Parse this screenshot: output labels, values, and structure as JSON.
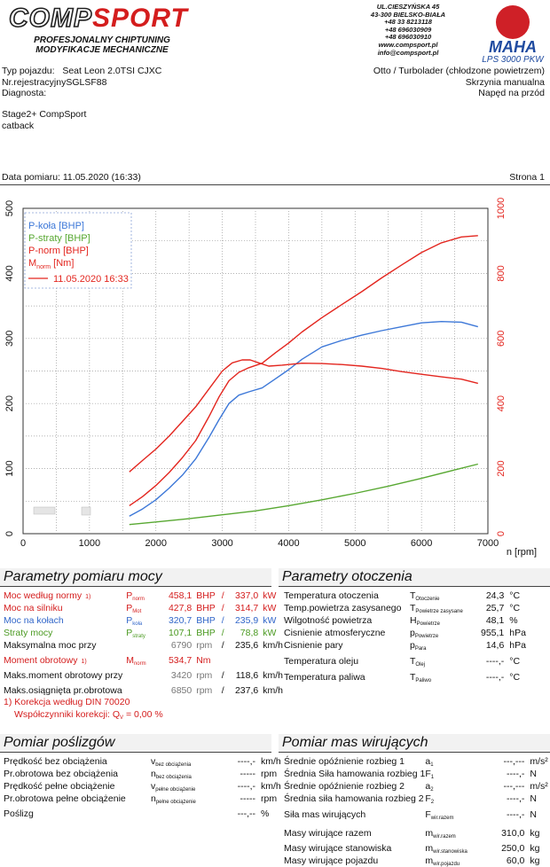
{
  "header": {
    "logo_comp": "COMP",
    "logo_sport": "SPORT",
    "logo_sub1": "PROFESJONALNY CHIPTUNING",
    "logo_sub2": "MODYFIKACJE MECHANICZNE",
    "address": [
      "UL.CIESZYŃSKA 45",
      "43-300 BIELSKO-BIAŁA",
      "+48 33 8213118",
      "+48 696030909",
      "+48 696030910",
      "www.compsport.pl",
      "info@compsport.pl"
    ],
    "brand": "MAHA",
    "model": "LPS 3000 PKW"
  },
  "vehicle": {
    "type_label": "Typ pojazdu:",
    "type_value": "Seat Leon 2.0TSI CJXC",
    "reg_label": "Nr.rejestracyjny",
    "reg_value": "SGLSF88",
    "diag_label": "Diagnosta:",
    "engine": "Otto / Turbolader (chłodzone powietrzem)",
    "gearbox": "Skrzynia manualna",
    "drive": "Napęd na przód"
  },
  "notes": [
    "Stage2+ CompSport",
    "catback"
  ],
  "measure": {
    "date_label": "Data pomiaru:",
    "date": "11.05.2020 (16:33)",
    "page": "Strona 1"
  },
  "chart_data": {
    "type": "line",
    "x_label": "n [rpm]",
    "x_range": [
      0,
      7000
    ],
    "x_ticks": [
      0,
      1000,
      2000,
      3000,
      4000,
      5000,
      6000,
      7000
    ],
    "y_left_range": [
      0,
      500
    ],
    "y_left_ticks": [
      0,
      100,
      200,
      300,
      400,
      500
    ],
    "y_right_range": [
      0,
      1000
    ],
    "y_right_ticks": [
      0,
      200,
      400,
      600,
      800,
      1000
    ],
    "grid": true,
    "legend_position": "top-left",
    "legend": [
      "P-koła [BHP]",
      "P-straty [BHP]",
      "P-norm [BHP]",
      "M",
      "norm",
      " [Nm]",
      "11.05.2020 16:33"
    ],
    "colors": {
      "p_kola": "#3d78d8",
      "p_straty": "#58a832",
      "p_norm": "#e3261f",
      "m_norm": "#e3261f",
      "grid": "#999999"
    },
    "series": [
      {
        "name": "P-koła [BHP]",
        "axis": "left",
        "x": [
          1600,
          1800,
          2000,
          2200,
          2400,
          2600,
          2800,
          2950,
          3100,
          3250,
          3400,
          3600,
          3800,
          4000,
          4200,
          4500,
          4800,
          5100,
          5400,
          5700,
          6000,
          6300,
          6600,
          6850
        ],
        "y": [
          27,
          38,
          52,
          70,
          90,
          115,
          148,
          175,
          200,
          213,
          218,
          224,
          238,
          252,
          268,
          287,
          297,
          305,
          312,
          318,
          324,
          326,
          325,
          318
        ]
      },
      {
        "name": "P-straty [BHP]",
        "axis": "left",
        "x": [
          1600,
          2000,
          2500,
          3000,
          3500,
          4000,
          4500,
          5000,
          5500,
          6000,
          6500,
          6850
        ],
        "y": [
          14,
          18,
          23,
          29,
          35,
          43,
          52,
          62,
          73,
          85,
          98,
          107
        ]
      },
      {
        "name": "P-norm [BHP]",
        "axis": "left",
        "x": [
          1600,
          1800,
          2000,
          2200,
          2400,
          2600,
          2800,
          2950,
          3100,
          3250,
          3400,
          3600,
          3800,
          4000,
          4200,
          4500,
          4800,
          5100,
          5400,
          5700,
          6000,
          6300,
          6600,
          6850
        ],
        "y": [
          43,
          57,
          74,
          94,
          117,
          143,
          180,
          210,
          235,
          248,
          255,
          262,
          278,
          293,
          310,
          332,
          352,
          372,
          393,
          413,
          432,
          447,
          456,
          458
        ]
      },
      {
        "name": "M",
        "axis": "right",
        "x": [
          1600,
          1800,
          2000,
          2200,
          2400,
          2600,
          2800,
          3000,
          3150,
          3300,
          3420,
          3550,
          3700,
          3900,
          4200,
          4500,
          4800,
          5100,
          5400,
          5700,
          6000,
          6300,
          6600,
          6850
        ],
        "y": [
          190,
          225,
          260,
          300,
          345,
          390,
          445,
          500,
          525,
          534,
          534,
          525,
          515,
          518,
          524,
          523,
          520,
          515,
          508,
          498,
          490,
          482,
          475,
          462
        ]
      }
    ]
  },
  "params": {
    "title": "Parametry pomiaru mocy",
    "rows": [
      {
        "label": "Moc według normy",
        "note": "1)",
        "sym": "P",
        "sub": "norm",
        "v1": "458,1",
        "u1": "BHP",
        "v2": "337,0",
        "u2": "kW",
        "color": "red"
      },
      {
        "label": "Moc na silniku",
        "note": "",
        "sym": "P",
        "sub": "Mot",
        "v1": "427,8",
        "u1": "BHP",
        "v2": "314,7",
        "u2": "kW",
        "color": "red"
      },
      {
        "label": "Moc na kołach",
        "note": "",
        "sym": "P",
        "sub": "koła",
        "v1": "320,7",
        "u1": "BHP",
        "v2": "235,9",
        "u2": "kW",
        "color": "blue"
      },
      {
        "label": "Straty mocy",
        "note": "",
        "sym": "P",
        "sub": "straty",
        "v1": "107,1",
        "u1": "BHP",
        "v2": "78,8",
        "u2": "kW",
        "color": "green"
      },
      {
        "label": "Maksymalna moc przy",
        "note": "",
        "sym": "",
        "sub": "",
        "v1": "6790",
        "u1": "rpm",
        "v2": "235,6",
        "u2": "km/h",
        "color": "black"
      },
      {
        "label": "Moment obrotowy",
        "note": "1)",
        "sym": "M",
        "sub": "norm",
        "v1": "534,7",
        "u1": "Nm",
        "v2": "",
        "u2": "",
        "color": "red"
      },
      {
        "label": "Maks.moment obrotowy przy",
        "note": "",
        "sym": "",
        "sub": "",
        "v1": "3420",
        "u1": "rpm",
        "v2": "118,6",
        "u2": "km/h",
        "color": "black"
      },
      {
        "label": "Maks.osiągnięta pr.obrotowa",
        "note": "",
        "sym": "",
        "sub": "",
        "v1": "6850",
        "u1": "rpm",
        "v2": "237,6",
        "u2": "km/h",
        "color": "black"
      }
    ],
    "correction1": "1) Korekcja według DIN 70020",
    "correction2": "Współczynniki korekcji: Q",
    "correction2_sub": "V",
    "correction2_val": "=   0,00 %"
  },
  "env": {
    "title": "Parametry otoczenia",
    "rows": [
      {
        "label": "Temperatura otoczenia",
        "sym": "T",
        "sub": "Otoczenie",
        "val": "24,3",
        "unit": "°C"
      },
      {
        "label": "Temp.powietrza zasysanego",
        "sym": "T",
        "sub": "Powietrze zasysane",
        "val": "25,7",
        "unit": "°C"
      },
      {
        "label": "Wilgotność powietrza",
        "sym": "H",
        "sub": "Powietrze",
        "val": "48,1",
        "unit": "%"
      },
      {
        "label": "Cisnienie atmosferyczne",
        "sym": "p",
        "sub": "Powietrze",
        "val": "955,1",
        "unit": "hPa"
      },
      {
        "label": "Cisnienie pary",
        "sym": "p",
        "sub": "Para",
        "val": "14,6",
        "unit": "hPa"
      },
      {
        "label": "Temperatura oleju",
        "sym": "T",
        "sub": "Olej",
        "val": "----,-",
        "unit": "°C"
      },
      {
        "label": "Temperatura paliwa",
        "sym": "T",
        "sub": "Paliwo",
        "val": "----,-",
        "unit": "°C"
      }
    ]
  },
  "slip": {
    "title": "Pomiar poślizgów",
    "rows": [
      {
        "label": "Prędkość bez obciążenia",
        "sym": "v",
        "sub": "bez obciążenia",
        "val": "----,-",
        "unit": "km/h"
      },
      {
        "label": "Pr.obrotowa bez obciążenia",
        "sym": "n",
        "sub": "bez obciążenia",
        "val": "-----",
        "unit": "rpm"
      },
      {
        "label": "Prędkość pełne obciążenie",
        "sym": "v",
        "sub": "pełne obciążenie",
        "val": "----,-",
        "unit": "km/h"
      },
      {
        "label": "Pr.obrotowa pełne obciążenie",
        "sym": "n",
        "sub": "pełne obciążenie",
        "val": "-----",
        "unit": "rpm"
      },
      {
        "label": "Poślizg",
        "sym": "",
        "sub": "",
        "val": "---,--",
        "unit": "%"
      }
    ]
  },
  "inertia": {
    "title": "Pomiar mas wirujących",
    "rows": [
      {
        "label": "Średnie opóźnienie rozbieg 1",
        "sym": "a",
        "sub": "1",
        "val": "---,---",
        "unit": "m/s²"
      },
      {
        "label": "Średnia Siła hamowania rozbieg 1",
        "sym": "F",
        "sub": "1",
        "val": "----,-",
        "unit": "N"
      },
      {
        "label": "Średnie opóźnienie rozbieg 2",
        "sym": "a",
        "sub": "2",
        "val": "---,---",
        "unit": "m/s²"
      },
      {
        "label": "Średnia siła hamowania rozbieg 2",
        "sym": "F",
        "sub": "2",
        "val": "----,-",
        "unit": "N"
      },
      {
        "label": "Siła mas wirujących",
        "sym": "F",
        "sub": "wir.razem",
        "val": "----,-",
        "unit": "N"
      },
      {
        "label": "Masy wirujące razem",
        "sym": "m",
        "sub": "wir.razem",
        "val": "310,0",
        "unit": "kg"
      },
      {
        "label": "Masy wirujące stanowiska",
        "sym": "m",
        "sub": "wir.stanowiska",
        "val": "250,0",
        "unit": "kg"
      },
      {
        "label": "Masy wirujące pojazdu",
        "sym": "m",
        "sub": "wir.pojazdu",
        "val": "60,0",
        "unit": "kg"
      }
    ]
  }
}
